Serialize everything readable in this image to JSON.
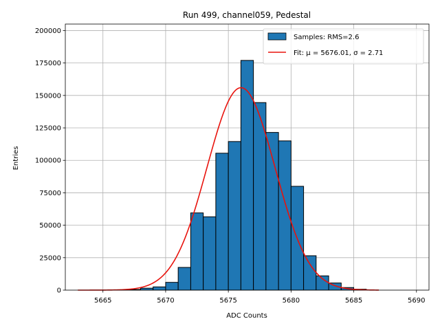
{
  "chart_data": {
    "type": "bar",
    "title": "Run 499, channel059, Pedestal",
    "xlabel": "ADC Counts",
    "ylabel": "Entries",
    "xlim": [
      5662,
      5691
    ],
    "ylim": [
      0,
      205000
    ],
    "xticks": [
      5665,
      5670,
      5675,
      5680,
      5685,
      5690
    ],
    "yticks": [
      0,
      25000,
      50000,
      75000,
      100000,
      125000,
      150000,
      175000,
      200000
    ],
    "grid": true,
    "legend_position": "top-right",
    "bins": {
      "edges": [
        5666,
        5667,
        5668,
        5669,
        5670,
        5671,
        5672,
        5673,
        5674,
        5675,
        5676,
        5677,
        5678,
        5679,
        5680,
        5681,
        5682,
        5683,
        5684,
        5685,
        5686
      ],
      "values": [
        200,
        500,
        1500,
        2500,
        6000,
        17500,
        59500,
        56500,
        105500,
        114500,
        177000,
        144500,
        121500,
        115000,
        80000,
        26500,
        11000,
        5500,
        2000,
        700
      ],
      "bar_color": "#1f77b4",
      "edge_color": "#000000"
    },
    "series": [
      {
        "name": "Samples: RMS=2.6",
        "kind": "histogram",
        "color": "#1f77b4"
      },
      {
        "name": "Fit: μ = 5676.01, σ = 2.71",
        "kind": "line",
        "color": "#e8120c"
      }
    ],
    "fit": {
      "mu": 5676.01,
      "sigma": 2.71,
      "amplitude": 156000,
      "x_range": [
        5663,
        5687
      ]
    }
  }
}
